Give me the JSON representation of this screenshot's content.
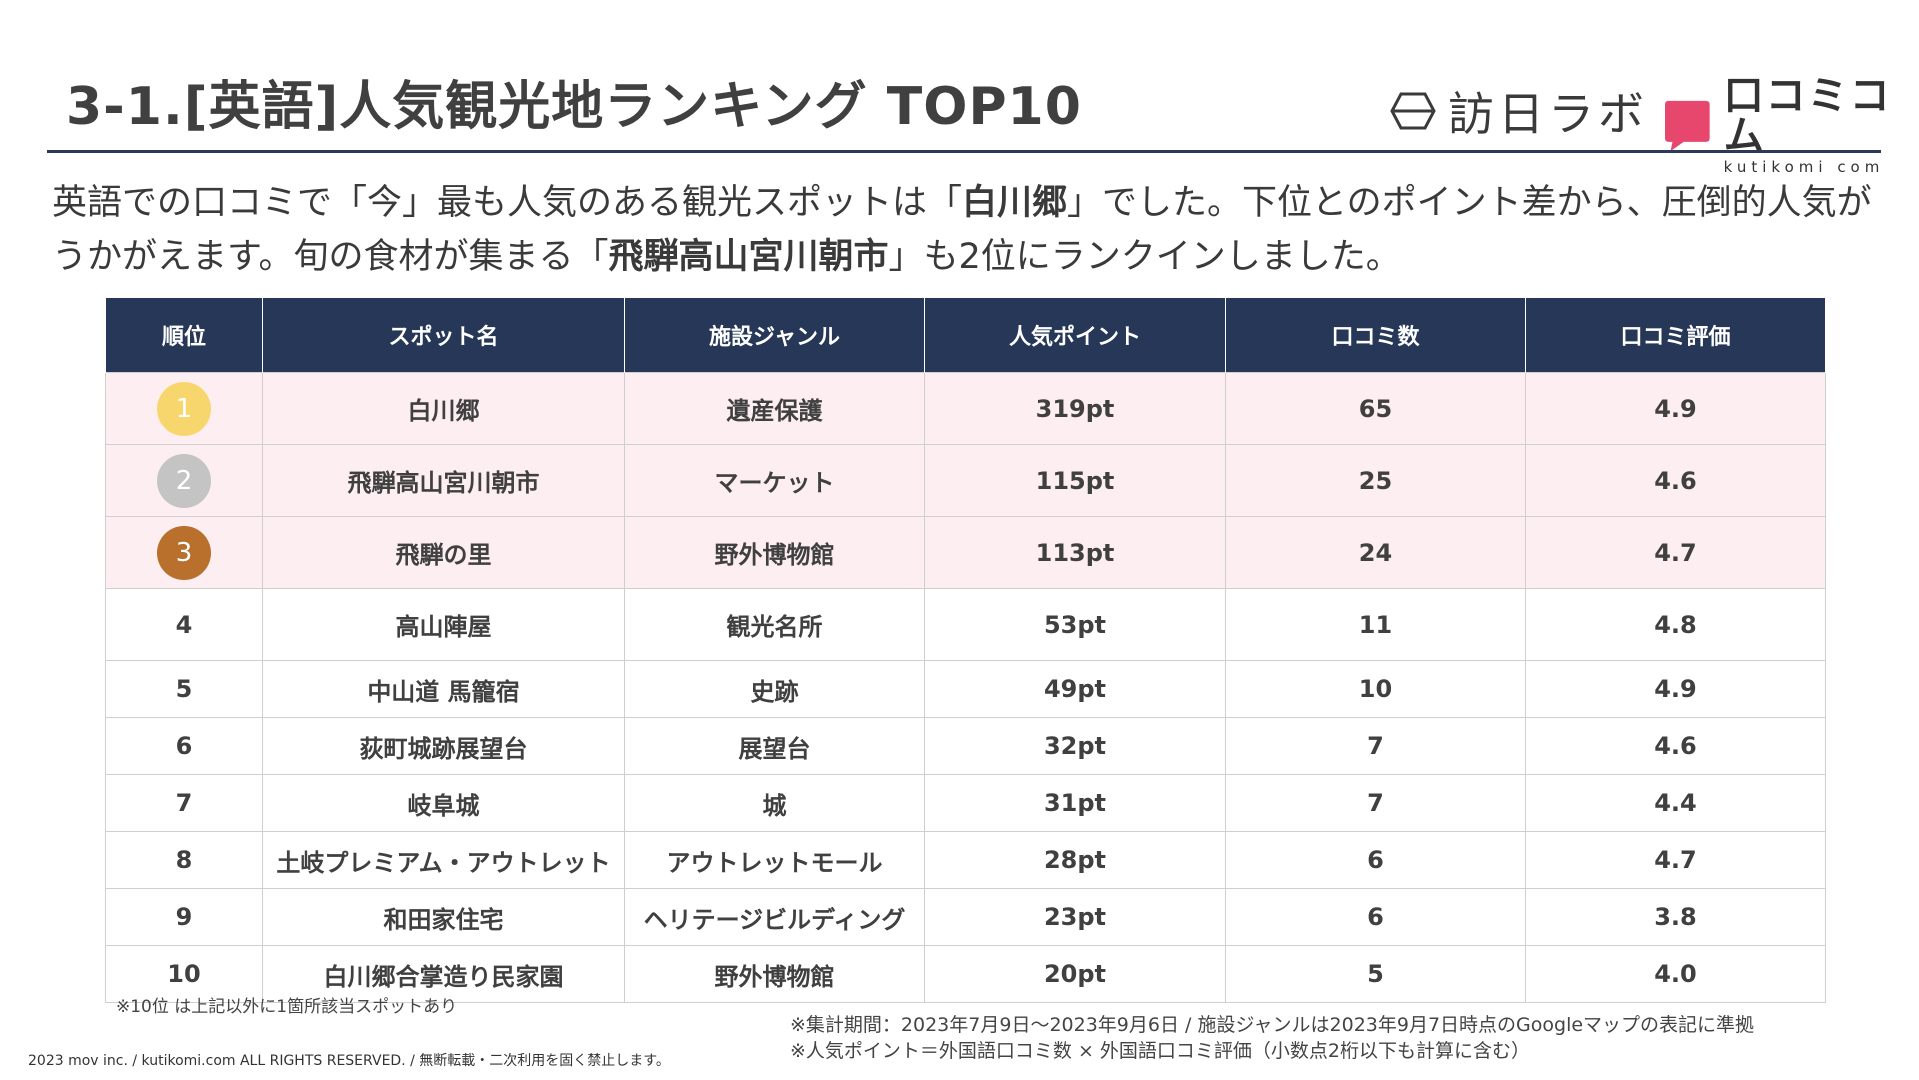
{
  "header": {
    "title": "3-1.[英語]人気観光地ランキング TOP10",
    "brand_primary": "訪日ラボ",
    "brand_secondary": "口コミコム",
    "brand_secondary_sub": "kutikomi com"
  },
  "lead": {
    "p1": "英語での口コミで「今」最も人気のある観光スポットは「",
    "b1": "白川郷",
    "p2": "」でした。下位とのポイント差から、圧倒的人気がうかがえます。旬の食材が集まる「",
    "b2": "飛騨高山宮川朝市",
    "p3": "」も2位にランクインしました。"
  },
  "table": {
    "headers": [
      "順位",
      "スポット名",
      "施設ジャンル",
      "人気ポイント",
      "口コミ数",
      "口コミ評価"
    ],
    "rows": [
      {
        "rank": "1",
        "name": "白川郷",
        "genre": "遺産保護",
        "points": "319pt",
        "reviews": "65",
        "rating": "4.9"
      },
      {
        "rank": "2",
        "name": "飛騨高山宮川朝市",
        "genre": "マーケット",
        "points": "115pt",
        "reviews": "25",
        "rating": "4.6"
      },
      {
        "rank": "3",
        "name": "飛騨の里",
        "genre": "野外博物館",
        "points": "113pt",
        "reviews": "24",
        "rating": "4.7"
      },
      {
        "rank": "4",
        "name": "高山陣屋",
        "genre": "観光名所",
        "points": "53pt",
        "reviews": "11",
        "rating": "4.8"
      },
      {
        "rank": "5",
        "name": "中山道 馬籠宿",
        "genre": "史跡",
        "points": "49pt",
        "reviews": "10",
        "rating": "4.9"
      },
      {
        "rank": "6",
        "name": "荻町城跡展望台",
        "genre": "展望台",
        "points": "32pt",
        "reviews": "7",
        "rating": "4.6"
      },
      {
        "rank": "7",
        "name": "岐阜城",
        "genre": "城",
        "points": "31pt",
        "reviews": "7",
        "rating": "4.4"
      },
      {
        "rank": "8",
        "name": "土岐プレミアム・アウトレット",
        "genre": "アウトレットモール",
        "points": "28pt",
        "reviews": "6",
        "rating": "4.7"
      },
      {
        "rank": "9",
        "name": "和田家住宅",
        "genre": "ヘリテージビルディング",
        "points": "23pt",
        "reviews": "6",
        "rating": "3.8"
      },
      {
        "rank": "10",
        "name": "白川郷合掌造り民家園",
        "genre": "野外博物館",
        "points": "20pt",
        "reviews": "5",
        "rating": "4.0"
      }
    ]
  },
  "colors": {
    "header_bg": "#273757",
    "top3_bg": "#fdeef2",
    "gold": "#f8d66e",
    "silver": "#c4c4c4",
    "bronze": "#b8702c",
    "brand_pink": "#e8476d"
  },
  "notes": {
    "rank10": "※10位 は上記以外に1箇所該当スポットあり",
    "period": "※集計期間：2023年7月9日～2023年9月6日 / 施設ジャンルは2023年9月7日時点のGoogleマップの表記に準拠",
    "formula": "※人気ポイント＝外国語口コミ数 × 外国語口コミ評価（小数点2桁以下も計算に含む）"
  },
  "footer": {
    "copyright": "2023 mov inc. / kutikomi.com ALL RIGHTS RESERVED. / 無断転載・二次利用を固く禁止します。"
  }
}
